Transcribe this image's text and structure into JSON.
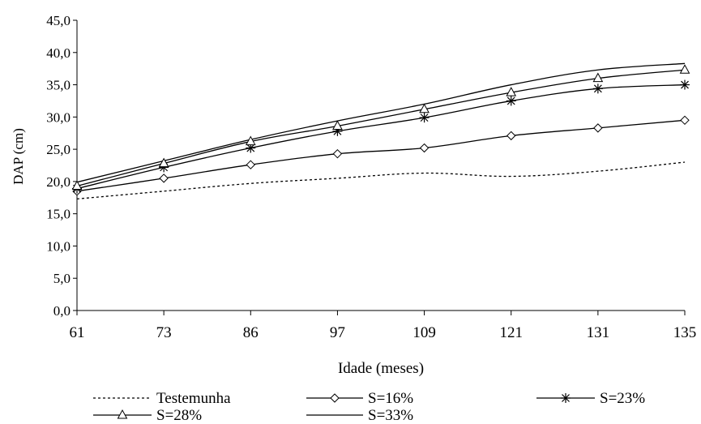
{
  "chart_data": {
    "type": "line",
    "xlabel": "Idade (meses)",
    "ylabel": "DAP (cm)",
    "categories": [
      "61",
      "73",
      "86",
      "97",
      "109",
      "121",
      "131",
      "135"
    ],
    "ylim": [
      0,
      45
    ],
    "yticks": [
      "0,0",
      "5,0",
      "10,0",
      "15,0",
      "20,0",
      "25,0",
      "30,0",
      "35,0",
      "40,0",
      "45,0"
    ],
    "grid": false,
    "legend_position": "bottom",
    "series": [
      {
        "name": "Testemunha",
        "marker": "none",
        "dash": "dotted",
        "values": [
          17.3,
          18.5,
          19.7,
          20.5,
          21.3,
          20.8,
          21.6,
          23.0
        ]
      },
      {
        "name": "S=16%",
        "marker": "diamond",
        "dash": "solid",
        "values": [
          18.5,
          20.5,
          22.6,
          24.3,
          25.2,
          27.1,
          28.3,
          29.5
        ]
      },
      {
        "name": "S=23%",
        "marker": "star",
        "dash": "solid",
        "values": [
          18.9,
          22.2,
          25.2,
          27.8,
          29.9,
          32.5,
          34.4,
          35.0
        ]
      },
      {
        "name": "S=28%",
        "marker": "triangle",
        "dash": "solid",
        "values": [
          19.3,
          22.8,
          26.2,
          28.6,
          31.2,
          33.8,
          36.0,
          37.3
        ]
      },
      {
        "name": "S=33%",
        "marker": "none",
        "dash": "solid",
        "values": [
          19.9,
          23.2,
          26.5,
          29.4,
          32.0,
          35.0,
          37.3,
          38.3
        ]
      }
    ]
  }
}
